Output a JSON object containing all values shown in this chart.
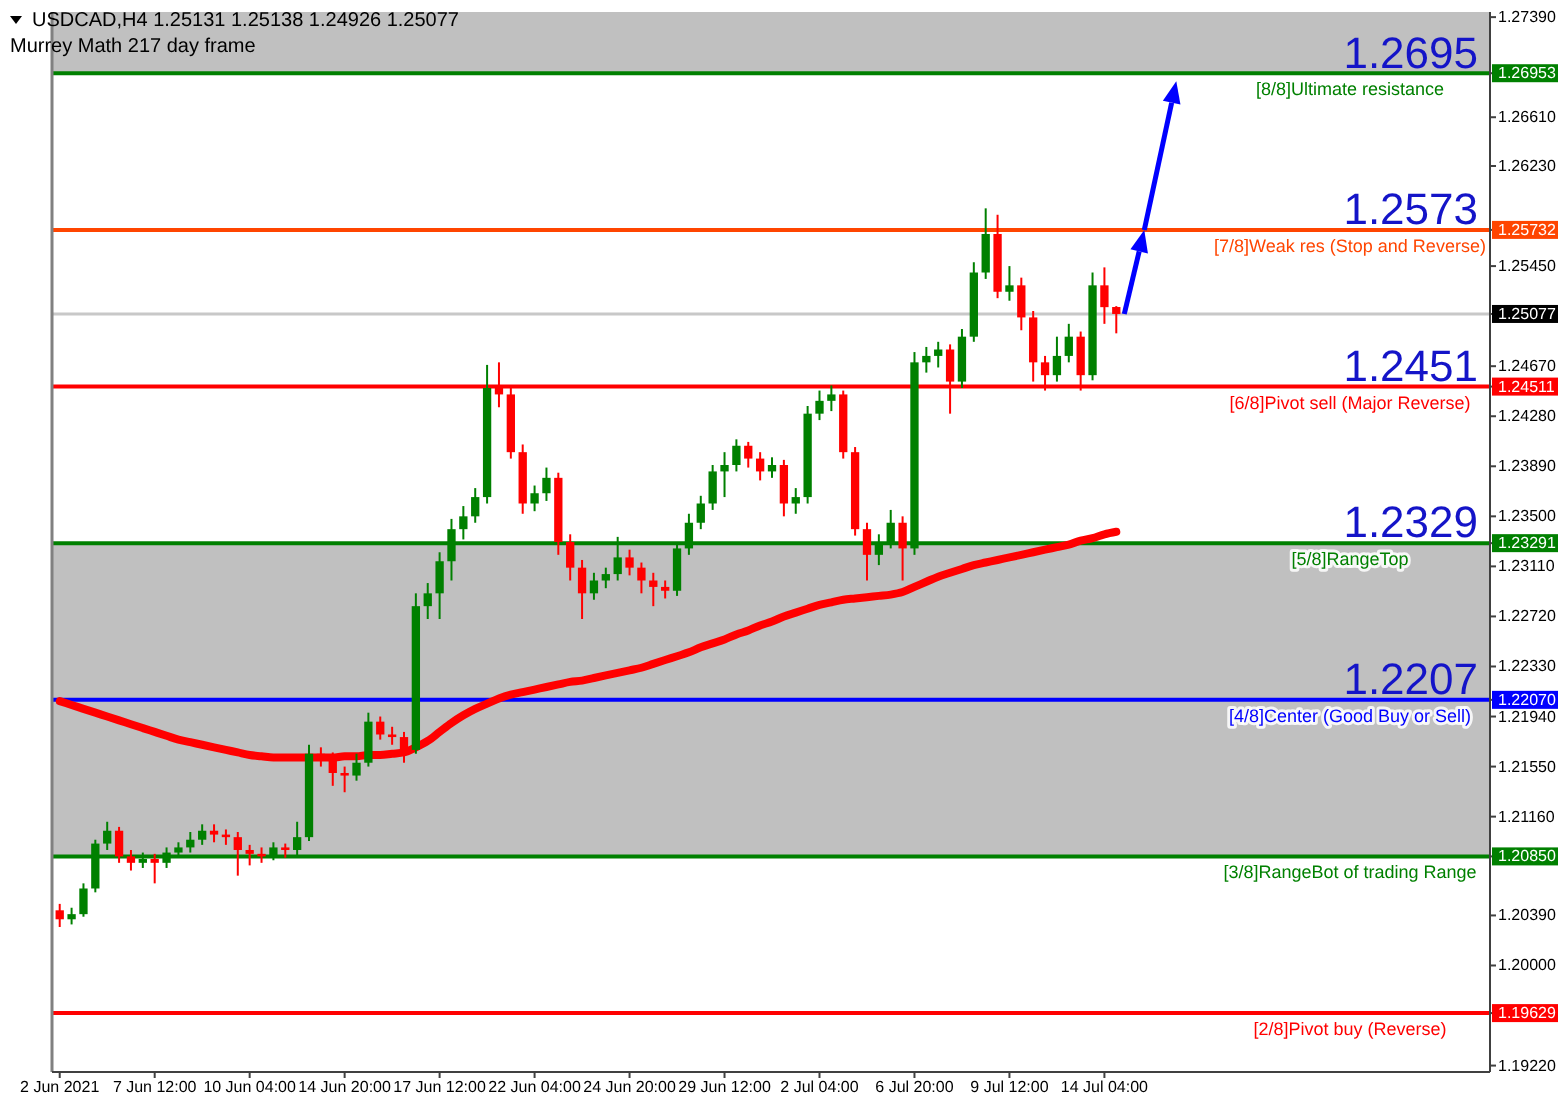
{
  "chart_data": {
    "type": "candlestick",
    "title": "USDCAD,H4 1.25131 1.25138 1.24926 1.25077",
    "subtitle": "Murrey Math 217 day frame",
    "categories": [
      "2 Jun 2021",
      null,
      null,
      null,
      null,
      null,
      null,
      null,
      "7 Jun 12:00",
      null,
      null,
      null,
      null,
      null,
      null,
      null,
      "10 Jun 04:00",
      null,
      null,
      null,
      null,
      null,
      null,
      null,
      "14 Jun 20:00",
      null,
      null,
      null,
      null,
      null,
      null,
      null,
      "17 Jun 12:00",
      null,
      null,
      null,
      null,
      null,
      null,
      null,
      "22 Jun 04:00",
      null,
      null,
      null,
      null,
      null,
      null,
      null,
      "24 Jun 20:00",
      null,
      null,
      null,
      null,
      null,
      null,
      null,
      "29 Jun 12:00",
      null,
      null,
      null,
      null,
      null,
      null,
      null,
      "2 Jul 04:00",
      null,
      null,
      null,
      null,
      null,
      null,
      null,
      "6 Jul 20:00",
      null,
      null,
      null,
      null,
      null,
      null,
      null,
      "9 Jul 12:00",
      null,
      null,
      null,
      null,
      null,
      null,
      null,
      "14 Jul 04:00",
      null
    ],
    "ylim": [
      1.1917,
      1.2743
    ],
    "yticks": [
      {
        "value": 1.1922,
        "label": "1.19220"
      },
      {
        "value": 1.19629,
        "label": "1.19629"
      },
      {
        "value": 1.2,
        "label": "1.20000"
      },
      {
        "value": 1.2039,
        "label": "1.20390"
      },
      {
        "value": 1.2085,
        "label": "1.20850"
      },
      {
        "value": 1.2116,
        "label": "1.21160"
      },
      {
        "value": 1.2155,
        "label": "1.21550"
      },
      {
        "value": 1.2194,
        "label": "1.21940"
      },
      {
        "value": 1.2207,
        "label": "1.22070"
      },
      {
        "value": 1.2233,
        "label": "1.22330"
      },
      {
        "value": 1.2272,
        "label": "1.22720"
      },
      {
        "value": 1.2311,
        "label": "1.23110"
      },
      {
        "value": 1.23291,
        "label": "1.23291"
      },
      {
        "value": 1.235,
        "label": "1.23500"
      },
      {
        "value": 1.2389,
        "label": "1.23890"
      },
      {
        "value": 1.2428,
        "label": "1.24280"
      },
      {
        "value": 1.24511,
        "label": "1.24511"
      },
      {
        "value": 1.2467,
        "label": "1.24670"
      },
      {
        "value": 1.25077,
        "label": "1.25077"
      },
      {
        "value": 1.2545,
        "label": "1.25450"
      },
      {
        "value": 1.25732,
        "label": "1.25732"
      },
      {
        "value": 1.2623,
        "label": "1.26230"
      },
      {
        "value": 1.2661,
        "label": "1.26610"
      },
      {
        "value": 1.26953,
        "label": "1.26953"
      },
      {
        "value": 1.2739,
        "label": "1.27390"
      }
    ],
    "bands": [
      {
        "axis": "y",
        "from": 1.26953,
        "to": 1.2743,
        "color": "#c0c0c0"
      },
      {
        "axis": "y",
        "from": 1.2085,
        "to": 1.23291,
        "color": "#c0c0c0"
      }
    ],
    "ref_lines": [
      {
        "axis": "y",
        "value": 1.26953,
        "label": "[8/8]Ultimate resistance",
        "color": "#008000"
      },
      {
        "axis": "y",
        "value": 1.25732,
        "label": "[7/8]Weak res (Stop and Reverse)",
        "color": "#ff4500"
      },
      {
        "axis": "y",
        "value": 1.24511,
        "label": "[6/8]Pivot sell (Major Reverse)",
        "color": "#ff0000"
      },
      {
        "axis": "y",
        "value": 1.23291,
        "label": "[5/8]RangeTop",
        "color": "#008000"
      },
      {
        "axis": "y",
        "value": 1.2207,
        "label": "[4/8]Center (Good Buy or Sell)",
        "color": "#0000ff"
      },
      {
        "axis": "y",
        "value": 1.2085,
        "label": "[3/8]RangeBot of trading Range",
        "color": "#008000"
      },
      {
        "axis": "y",
        "value": 1.19629,
        "label": "[2/8]Pivot buy (Reverse)",
        "color": "#ff0000"
      },
      {
        "axis": "y",
        "value": 1.25077,
        "color": "#c8c8c8"
      }
    ],
    "annotations": [
      {
        "text": "1.2695",
        "y": 1.2695
      },
      {
        "text": "1.2573",
        "y": 1.2573
      },
      {
        "text": "1.2451",
        "y": 1.2451
      },
      {
        "text": "1.2329",
        "y": 1.2329
      },
      {
        "text": "1.2207",
        "y": 1.2207
      }
    ],
    "series": [
      {
        "type": "line",
        "color": "#ff0000",
        "values": [
          1.2206,
          1.2203,
          1.22,
          1.2197,
          1.2194,
          1.2191,
          1.2188,
          1.2185,
          1.2182,
          1.2179,
          1.2176,
          1.2174,
          1.2172,
          1.217,
          1.2168,
          1.2166,
          1.2164,
          1.2163,
          1.2162,
          1.2162,
          1.2162,
          1.2162,
          1.2162,
          1.2162,
          1.2163,
          1.2163,
          1.2164,
          1.2164,
          1.2165,
          1.2166,
          1.217,
          1.2175,
          1.2182,
          1.2189,
          1.2195,
          1.22,
          1.2204,
          1.2208,
          1.2211,
          1.2213,
          1.2215,
          1.2217,
          1.2219,
          1.2221,
          1.2222,
          1.2224,
          1.2226,
          1.2228,
          1.223,
          1.2232,
          1.2235,
          1.2238,
          1.2241,
          1.2244,
          1.2248,
          1.2251,
          1.2254,
          1.2258,
          1.2261,
          1.2265,
          1.2268,
          1.2272,
          1.2275,
          1.2278,
          1.2281,
          1.2283,
          1.2285,
          1.2286,
          1.2287,
          1.2288,
          1.2289,
          1.2291,
          1.2295,
          1.2299,
          1.2303,
          1.2306,
          1.2309,
          1.2312,
          1.2314,
          1.2316,
          1.2318,
          1.232,
          1.2322,
          1.2324,
          1.2326,
          1.2328,
          1.2331,
          1.2333,
          1.2336,
          1.2338
        ]
      },
      {
        "type": "candlestick",
        "ohlc": [
          [
            1.2043,
            1.2048,
            1.203,
            1.2036
          ],
          [
            1.2036,
            1.2045,
            1.2032,
            1.204
          ],
          [
            1.204,
            1.2064,
            1.2038,
            1.206
          ],
          [
            1.206,
            1.2098,
            1.2057,
            1.2095
          ],
          [
            1.2095,
            1.2112,
            1.209,
            1.2105
          ],
          [
            1.2105,
            1.2108,
            1.208,
            1.2085
          ],
          [
            1.2085,
            1.209,
            1.2074,
            1.208
          ],
          [
            1.208,
            1.2088,
            1.2076,
            1.2083
          ],
          [
            1.2083,
            1.2087,
            1.2064,
            1.208
          ],
          [
            1.208,
            1.2092,
            1.2076,
            1.2088
          ],
          [
            1.2088,
            1.2096,
            1.2084,
            1.2092
          ],
          [
            1.2092,
            1.2104,
            1.2088,
            1.2098
          ],
          [
            1.2098,
            1.211,
            1.2094,
            1.2105
          ],
          [
            1.2105,
            1.211,
            1.2096,
            1.2102
          ],
          [
            1.2102,
            1.2106,
            1.2094,
            1.21
          ],
          [
            1.21,
            1.2104,
            1.207,
            1.209
          ],
          [
            1.209,
            1.2094,
            1.2078,
            1.2087
          ],
          [
            1.2087,
            1.2092,
            1.208,
            1.2085
          ],
          [
            1.2085,
            1.2096,
            1.2082,
            1.2092
          ],
          [
            1.2092,
            1.2095,
            1.2084,
            1.209
          ],
          [
            1.209,
            1.2112,
            1.2086,
            1.21
          ],
          [
            1.21,
            1.2172,
            1.2097,
            1.2165
          ],
          [
            1.2165,
            1.217,
            1.2155,
            1.2162
          ],
          [
            1.2162,
            1.2166,
            1.214,
            1.215
          ],
          [
            1.215,
            1.2155,
            1.2135,
            1.2148
          ],
          [
            1.2148,
            1.2165,
            1.2144,
            1.2158
          ],
          [
            1.2158,
            1.2197,
            1.2155,
            1.219
          ],
          [
            1.219,
            1.2194,
            1.2176,
            1.218
          ],
          [
            1.218,
            1.2186,
            1.2172,
            1.2178
          ],
          [
            1.2178,
            1.2182,
            1.2158,
            1.2168
          ],
          [
            1.2168,
            1.229,
            1.2165,
            1.228
          ],
          [
            1.228,
            1.2298,
            1.227,
            1.229
          ],
          [
            1.229,
            1.2322,
            1.227,
            1.2315
          ],
          [
            1.2315,
            1.2348,
            1.23,
            1.234
          ],
          [
            1.234,
            1.2358,
            1.2332,
            1.235
          ],
          [
            1.235,
            1.2372,
            1.2345,
            1.2365
          ],
          [
            1.2365,
            1.2468,
            1.236,
            1.245
          ],
          [
            1.245,
            1.247,
            1.2435,
            1.2445
          ],
          [
            1.2445,
            1.245,
            1.2395,
            1.24
          ],
          [
            1.24,
            1.2406,
            1.2352,
            1.236
          ],
          [
            1.236,
            1.2374,
            1.2354,
            1.2368
          ],
          [
            1.2368,
            1.2388,
            1.2362,
            1.238
          ],
          [
            1.238,
            1.2384,
            1.232,
            1.233
          ],
          [
            1.233,
            1.2336,
            1.23,
            1.231
          ],
          [
            1.231,
            1.2316,
            1.227,
            1.229
          ],
          [
            1.229,
            1.2306,
            1.2285,
            1.23
          ],
          [
            1.23,
            1.231,
            1.2294,
            1.2305
          ],
          [
            1.2305,
            1.2334,
            1.23,
            1.2318
          ],
          [
            1.2318,
            1.2324,
            1.2304,
            1.231
          ],
          [
            1.231,
            1.2314,
            1.229,
            1.23
          ],
          [
            1.23,
            1.2306,
            1.228,
            1.2295
          ],
          [
            1.2295,
            1.23,
            1.2286,
            1.2292
          ],
          [
            1.2292,
            1.233,
            1.2288,
            1.2325
          ],
          [
            1.2325,
            1.2352,
            1.232,
            1.2345
          ],
          [
            1.2345,
            1.2366,
            1.234,
            1.236
          ],
          [
            1.236,
            1.239,
            1.2355,
            1.2385
          ],
          [
            1.2385,
            1.24,
            1.2365,
            1.239
          ],
          [
            1.239,
            1.241,
            1.2385,
            1.2405
          ],
          [
            1.2405,
            1.2408,
            1.2388,
            1.2395
          ],
          [
            1.2395,
            1.24,
            1.2378,
            1.2385
          ],
          [
            1.2385,
            1.2396,
            1.238,
            1.239
          ],
          [
            1.239,
            1.2394,
            1.235,
            1.236
          ],
          [
            1.236,
            1.2372,
            1.2352,
            1.2365
          ],
          [
            1.2365,
            1.2436,
            1.236,
            1.243
          ],
          [
            1.243,
            1.2448,
            1.2425,
            1.244
          ],
          [
            1.244,
            1.2452,
            1.2432,
            1.2445
          ],
          [
            1.2445,
            1.2448,
            1.2395,
            1.24
          ],
          [
            1.24,
            1.2404,
            1.2335,
            1.234
          ],
          [
            1.234,
            1.2345,
            1.23,
            1.232
          ],
          [
            1.232,
            1.2336,
            1.2312,
            1.233
          ],
          [
            1.233,
            1.2355,
            1.2325,
            1.2345
          ],
          [
            1.2345,
            1.235,
            1.23,
            1.2325
          ],
          [
            1.2325,
            1.2478,
            1.232,
            1.247
          ],
          [
            1.247,
            1.2482,
            1.2462,
            1.2475
          ],
          [
            1.2475,
            1.2486,
            1.2466,
            1.248
          ],
          [
            1.248,
            1.2484,
            1.243,
            1.2455
          ],
          [
            1.2455,
            1.2496,
            1.245,
            1.249
          ],
          [
            1.249,
            1.2548,
            1.2486,
            1.254
          ],
          [
            1.254,
            1.259,
            1.2535,
            1.257
          ],
          [
            1.257,
            1.2585,
            1.252,
            1.2525
          ],
          [
            1.2525,
            1.2545,
            1.2518,
            1.253
          ],
          [
            1.253,
            1.2536,
            1.2495,
            1.2505
          ],
          [
            1.2505,
            1.251,
            1.2455,
            1.247
          ],
          [
            1.247,
            1.2475,
            1.2448,
            1.246
          ],
          [
            1.246,
            1.249,
            1.2455,
            1.2475
          ],
          [
            1.2475,
            1.25,
            1.247,
            1.249
          ],
          [
            1.249,
            1.2494,
            1.2448,
            1.246
          ],
          [
            1.246,
            1.254,
            1.2456,
            1.253
          ],
          [
            1.253,
            1.2544,
            1.25,
            1.2513
          ],
          [
            1.25131,
            1.25138,
            1.24926,
            1.25077
          ]
        ],
        "colors": [
          "#ff0000",
          "#008000",
          "#008000",
          "#008000",
          "#008000",
          "#ff0000",
          "#ff0000",
          "#008000",
          "#ff0000",
          "#008000",
          "#008000",
          "#008000",
          "#008000",
          "#ff0000",
          "#ff0000",
          "#ff0000",
          "#ff0000",
          "#ff0000",
          "#008000",
          "#ff0000",
          "#008000",
          "#008000",
          "#ff0000",
          "#ff0000",
          "#ff0000",
          "#008000",
          "#008000",
          "#ff0000",
          "#ff0000",
          "#ff0000",
          "#008000",
          "#008000",
          "#008000",
          "#008000",
          "#008000",
          "#008000",
          "#008000",
          "#ff0000",
          "#ff0000",
          "#ff0000",
          "#008000",
          "#008000",
          "#ff0000",
          "#ff0000",
          "#ff0000",
          "#008000",
          "#008000",
          "#008000",
          "#ff0000",
          "#ff0000",
          "#ff0000",
          "#ff0000",
          "#008000",
          "#008000",
          "#008000",
          "#008000",
          "#008000",
          "#008000",
          "#ff0000",
          "#ff0000",
          "#008000",
          "#ff0000",
          "#008000",
          "#008000",
          "#008000",
          "#008000",
          "#ff0000",
          "#ff0000",
          "#ff0000",
          "#008000",
          "#008000",
          "#ff0000",
          "#008000",
          "#008000",
          "#008000",
          "#ff0000",
          "#008000",
          "#008000",
          "#008000",
          "#ff0000",
          "#008000",
          "#ff0000",
          "#ff0000",
          "#ff0000",
          "#008000",
          "#008000",
          "#ff0000",
          "#008000",
          "#ff0000",
          "#ff0000"
        ]
      }
    ]
  }
}
